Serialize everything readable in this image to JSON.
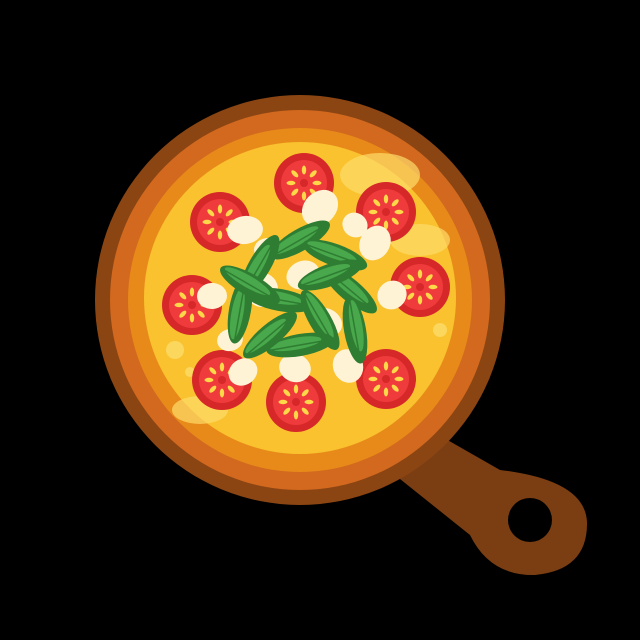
{
  "illustration": {
    "subject": "pizza-in-pan-icon",
    "toppings": {
      "tomato_slices": 8,
      "mozzarella_pieces": 14,
      "basil_leaves": 12
    }
  },
  "colors": {
    "background": "#000000",
    "pan_handle": "#7a3e12",
    "pan_rim": "#8b4513",
    "pan_rim_inner": "#d2691e",
    "crust": "#e88a1a",
    "cheese": "#f9c22e",
    "cheese_highlight": "#fddc6a",
    "tomato": "#d62828",
    "tomato_inner": "#ef3b3b",
    "tomato_seed": "#ffd84a",
    "mozzarella": "#fff3d6",
    "basil_dark": "#2f7d32",
    "basil_light": "#4caf50"
  }
}
